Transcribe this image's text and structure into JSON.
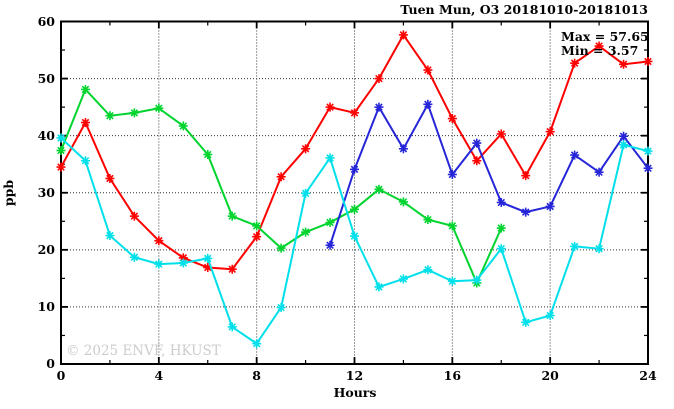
{
  "title": "Tuen Mun, O3 20181010-20181013",
  "annotations": {
    "max_label": "Max = 57.65",
    "min_label": "Min = 3.57"
  },
  "watermark": "© 2025 ENVF, HKUST",
  "colors": {
    "red_series": "#ff0000",
    "green_series": "#00d42e",
    "blue_series": "#2626d8",
    "cyan_series": "#00e0ea",
    "axis": "#000000",
    "grid": "#333333",
    "watermark_text": "#cccccc"
  },
  "chart_data": {
    "type": "line",
    "title": "Tuen Mun, O3 20181010-20181013",
    "xlabel": "Hours",
    "ylabel": "ppb",
    "xlim": [
      0,
      24
    ],
    "ylim": [
      0,
      60
    ],
    "x_ticks": [
      0,
      4,
      8,
      12,
      16,
      20,
      24
    ],
    "x_minor_step": 2,
    "y_ticks": [
      0,
      10,
      20,
      30,
      40,
      50,
      60
    ],
    "y_minor_step": 5,
    "grid": true,
    "legend_position": "none",
    "marker": "asterisk",
    "max": 57.65,
    "min": 3.57,
    "series": [
      {
        "name": "red",
        "color": "#ff0000",
        "x": [
          0,
          1,
          2,
          3,
          4,
          5,
          6,
          7,
          8,
          9,
          10,
          11,
          12,
          13,
          14,
          15,
          16,
          17,
          18,
          19,
          20,
          21,
          22,
          23,
          24
        ],
        "values": [
          34.5,
          42.3,
          32.5,
          25.9,
          21.6,
          18.6,
          16.9,
          16.6,
          22.3,
          32.8,
          37.7,
          45.0,
          44.0,
          50.0,
          57.65,
          51.5,
          43.0,
          35.6,
          40.3,
          33.0,
          40.7,
          52.7,
          55.7,
          52.5,
          53.0
        ]
      },
      {
        "name": "green",
        "color": "#00d42e",
        "x": [
          0,
          1,
          2,
          3,
          4,
          5,
          6,
          7,
          8,
          9,
          10,
          11,
          12,
          13,
          14,
          15,
          16,
          17,
          18
        ],
        "values": [
          37.4,
          48.1,
          43.5,
          44.0,
          44.8,
          41.7,
          36.7,
          25.9,
          24.2,
          20.3,
          23.1,
          24.8,
          27.1,
          30.6,
          28.4,
          25.3,
          24.2,
          14.2,
          23.8
        ]
      },
      {
        "name": "blue",
        "color": "#2626d8",
        "x": [
          11,
          12,
          13,
          14,
          15,
          16,
          17,
          18,
          19,
          20,
          21,
          22,
          23,
          24
        ],
        "values": [
          20.8,
          34.1,
          45.0,
          37.7,
          45.5,
          33.2,
          38.7,
          28.3,
          26.6,
          27.6,
          36.6,
          33.6,
          39.9,
          34.3
        ]
      },
      {
        "name": "cyan",
        "color": "#00e0ea",
        "x": [
          0,
          1,
          2,
          3,
          4,
          5,
          6,
          7,
          8,
          9,
          10,
          11,
          12,
          13,
          14,
          15,
          16,
          17,
          18,
          19,
          20,
          21,
          22,
          23,
          24
        ],
        "values": [
          39.6,
          35.6,
          22.5,
          18.7,
          17.5,
          17.7,
          18.5,
          6.5,
          3.57,
          9.9,
          29.9,
          36.1,
          22.4,
          13.5,
          14.9,
          16.5,
          14.5,
          14.7,
          20.2,
          7.3,
          8.5,
          20.6,
          20.2,
          38.4,
          37.3
        ]
      }
    ]
  }
}
